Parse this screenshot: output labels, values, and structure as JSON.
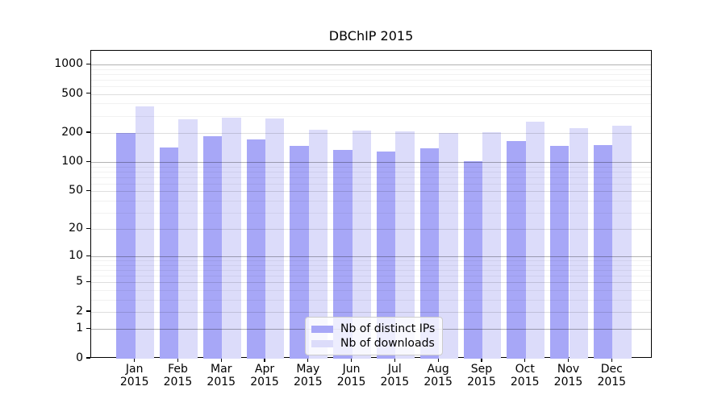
{
  "chart_data": {
    "type": "bar",
    "title": "DBChIP 2015",
    "categories": [
      "Jan 2015",
      "Feb 2015",
      "Mar 2015",
      "Apr 2015",
      "May 2015",
      "Jun 2015",
      "Jul 2015",
      "Aug 2015",
      "Sep 2015",
      "Oct 2015",
      "Nov 2015",
      "Dec 2015"
    ],
    "series": [
      {
        "name": "Nb of distinct IPs",
        "color": "#a7a7f7",
        "values": [
          200,
          143,
          186,
          173,
          148,
          133,
          128,
          140,
          102,
          166,
          148,
          150
        ]
      },
      {
        "name": "Nb of downloads",
        "color": "#dcdcfa",
        "values": [
          372,
          274,
          285,
          282,
          216,
          211,
          206,
          199,
          202,
          263,
          225,
          238
        ]
      }
    ],
    "xlabel": "",
    "ylabel": "",
    "yscale": "log1p",
    "yticks": [
      0,
      1,
      2,
      5,
      10,
      20,
      50,
      100,
      200,
      500,
      1000
    ],
    "ytick_major": [
      1,
      10,
      100,
      1000
    ],
    "ytick_minor": [
      3,
      4,
      6,
      7,
      8,
      9,
      30,
      40,
      60,
      70,
      80,
      90,
      300,
      400,
      600,
      700,
      800,
      900
    ],
    "ylim": [
      0,
      1370
    ],
    "grid": true,
    "legend_position": "lower center"
  }
}
